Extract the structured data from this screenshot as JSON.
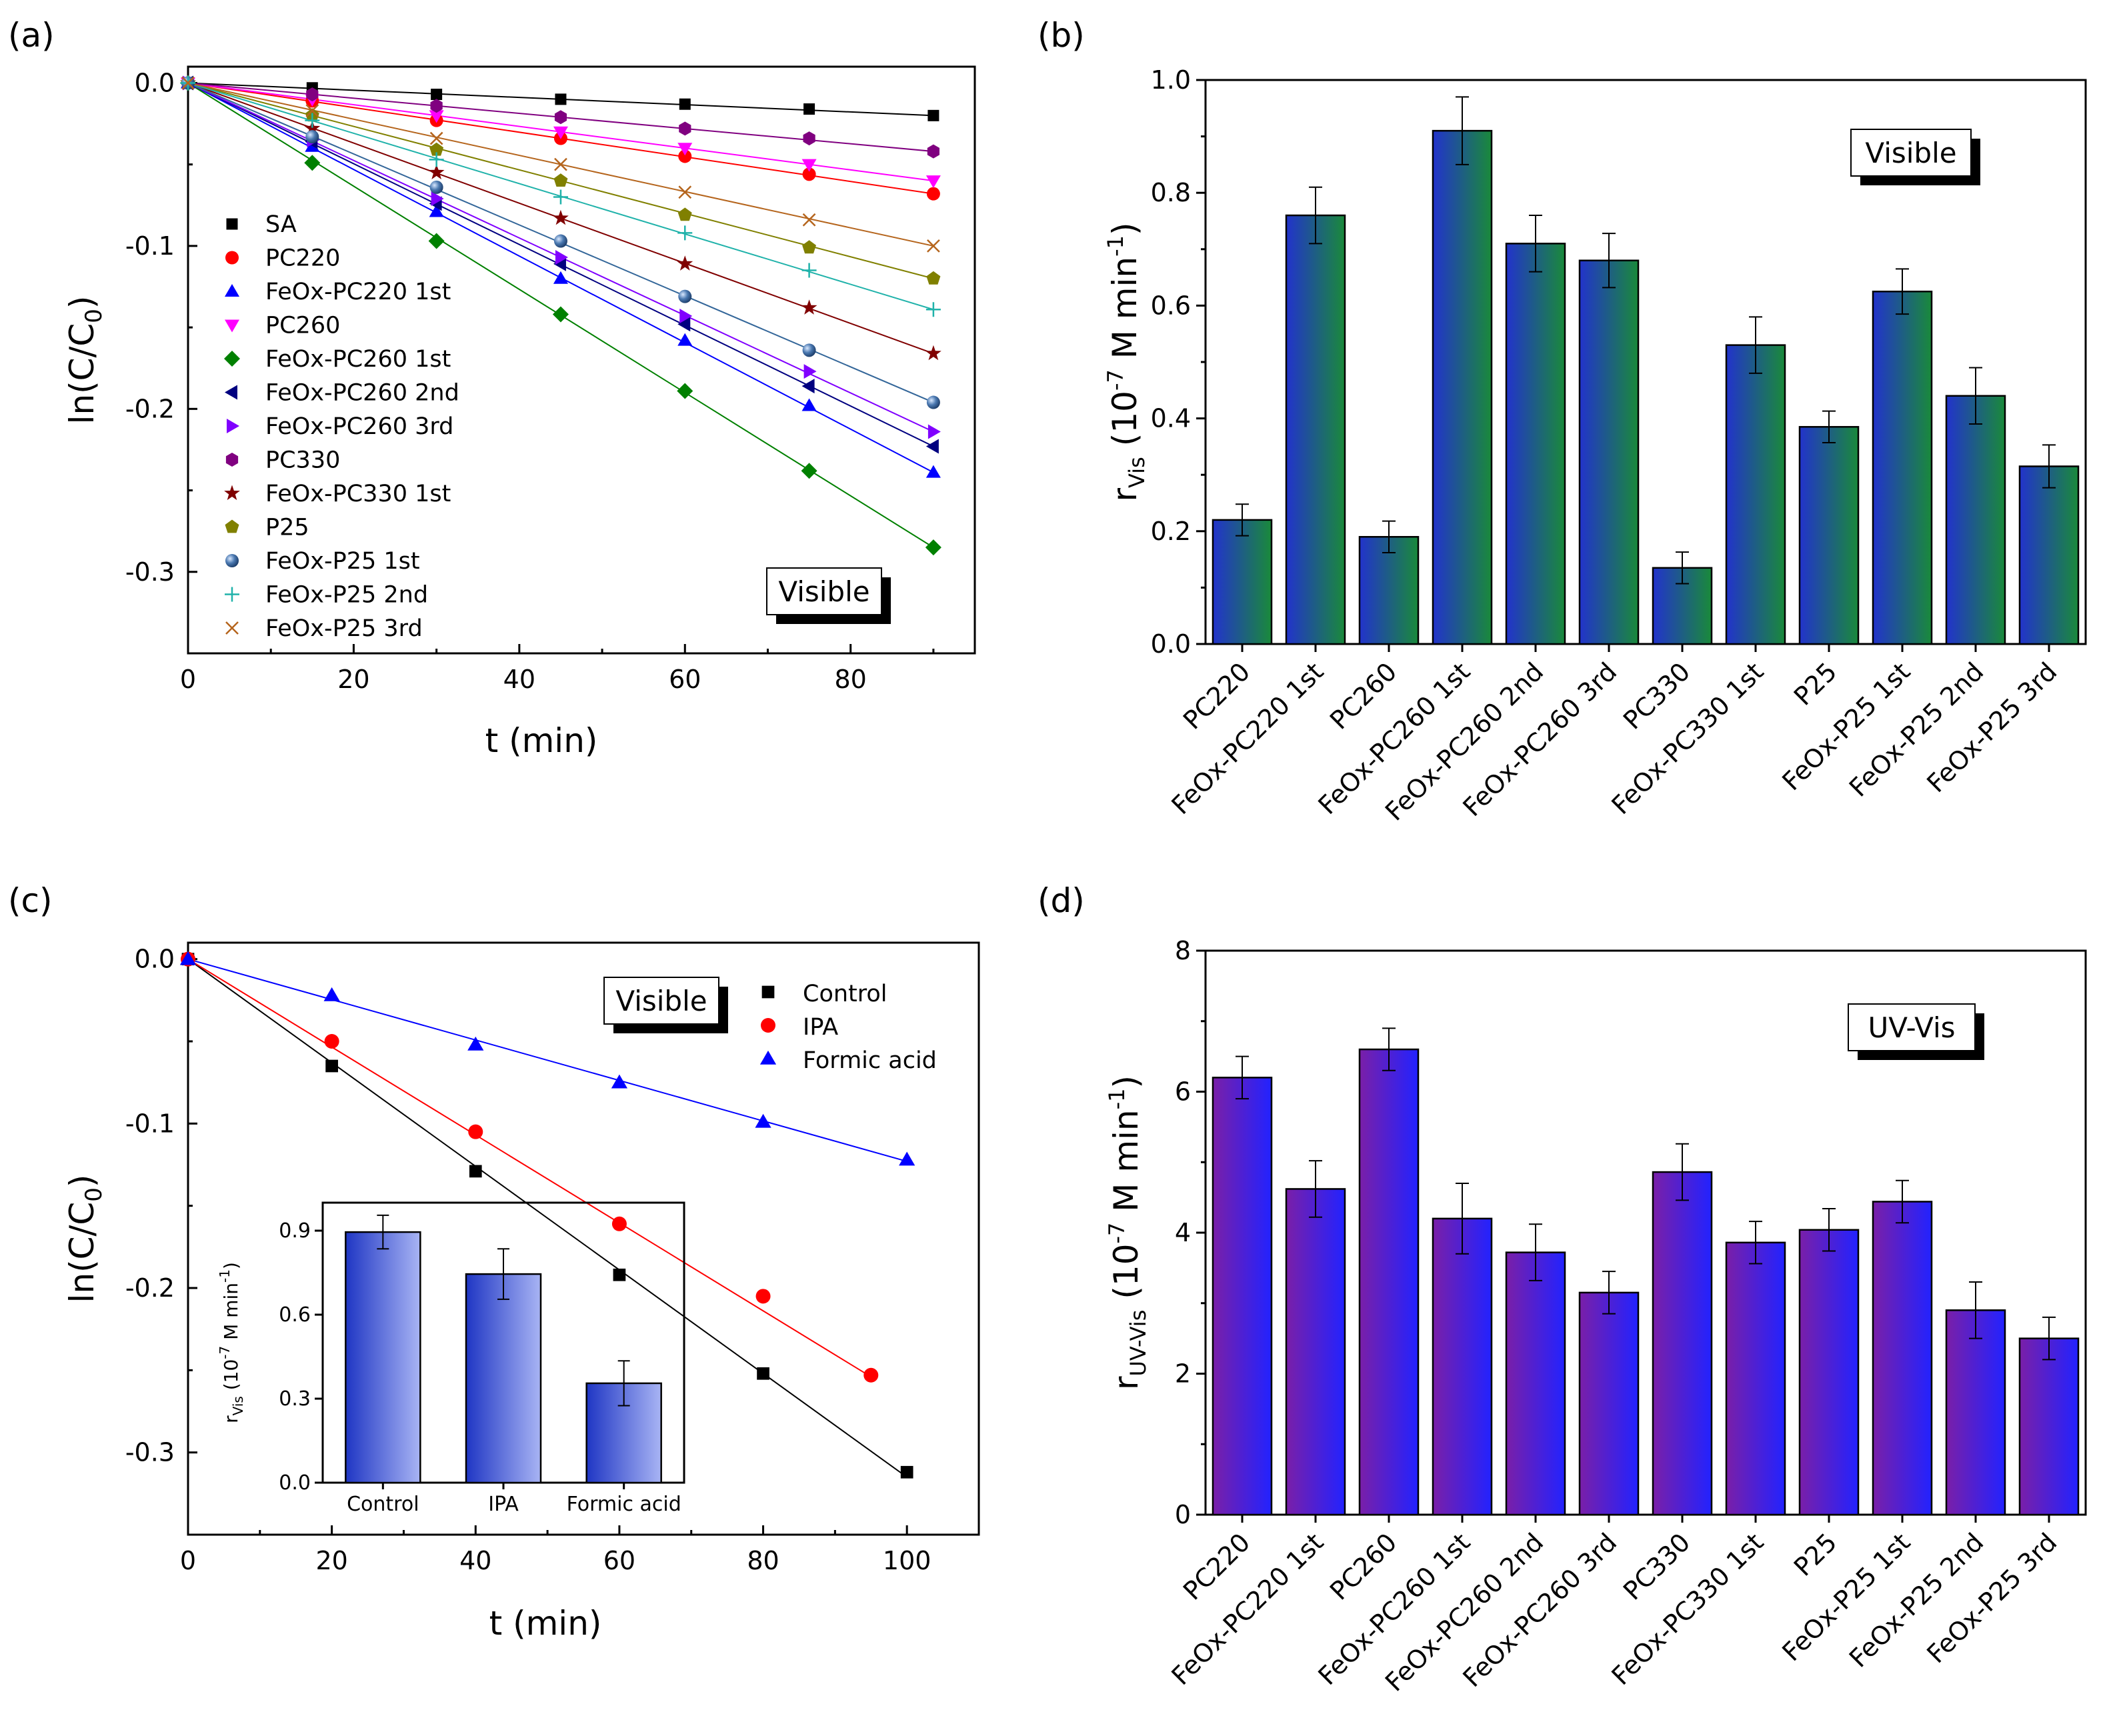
{
  "chart_data": [
    {
      "panel": "(a)",
      "type": "line",
      "xlabel": "t (min)",
      "ylabel": "ln(C/C",
      "ylabel_sub": "0",
      "ylabel_end": ")",
      "xlim": [
        0,
        95
      ],
      "ylim": [
        -0.35,
        0.01
      ],
      "xticks": [
        "0",
        "20",
        "40",
        "60",
        "80"
      ],
      "yticks": [
        "0.0",
        "-0.1",
        "-0.2",
        "-0.3"
      ],
      "annotation": "Visible",
      "x": [
        0,
        15,
        30,
        45,
        60,
        75,
        90
      ],
      "series": [
        {
          "name": "SA",
          "color": "#000000",
          "marker": "square",
          "values": [
            0,
            -0.003,
            -0.007,
            -0.01,
            -0.013,
            -0.016,
            -0.02
          ]
        },
        {
          "name": "PC220",
          "color": "#ff0000",
          "marker": "circle",
          "values": [
            0,
            -0.011,
            -0.023,
            -0.034,
            -0.045,
            -0.056,
            -0.068
          ]
        },
        {
          "name": "FeOx-PC220 1st",
          "color": "#0000ff",
          "marker": "triangle-up",
          "values": [
            0,
            -0.039,
            -0.079,
            -0.12,
            -0.158,
            -0.198,
            -0.239
          ]
        },
        {
          "name": "PC260",
          "color": "#ff00ff",
          "marker": "triangle-down",
          "values": [
            0,
            -0.01,
            -0.02,
            -0.03,
            -0.04,
            -0.05,
            -0.06
          ]
        },
        {
          "name": "FeOx-PC260 1st",
          "color": "#008000",
          "marker": "diamond",
          "values": [
            0,
            -0.049,
            -0.097,
            -0.142,
            -0.189,
            -0.238,
            -0.285
          ]
        },
        {
          "name": "FeOx-PC260 2nd",
          "color": "#000080",
          "marker": "triangle-left",
          "values": [
            0,
            -0.036,
            -0.074,
            -0.111,
            -0.148,
            -0.186,
            -0.223
          ]
        },
        {
          "name": "FeOx-PC260 3rd",
          "color": "#8000ff",
          "marker": "triangle-right",
          "values": [
            0,
            -0.035,
            -0.071,
            -0.107,
            -0.143,
            -0.177,
            -0.214
          ]
        },
        {
          "name": "PC330",
          "color": "#800080",
          "marker": "hexagon",
          "values": [
            0,
            -0.007,
            -0.014,
            -0.021,
            -0.028,
            -0.034,
            -0.042
          ]
        },
        {
          "name": "FeOx-PC330 1st",
          "color": "#800000",
          "marker": "star",
          "values": [
            0,
            -0.028,
            -0.055,
            -0.083,
            -0.111,
            -0.138,
            -0.166
          ]
        },
        {
          "name": "P25",
          "color": "#808000",
          "marker": "pentagon",
          "values": [
            0,
            -0.02,
            -0.041,
            -0.06,
            -0.081,
            -0.101,
            -0.12
          ]
        },
        {
          "name": "FeOx-P25 1st",
          "color": "#336699",
          "marker": "sphere",
          "values": [
            0,
            -0.033,
            -0.064,
            -0.097,
            -0.131,
            -0.164,
            -0.196
          ]
        },
        {
          "name": "FeOx-P25 2nd",
          "color": "#20b2aa",
          "marker": "plus",
          "values": [
            0,
            -0.023,
            -0.047,
            -0.07,
            -0.092,
            -0.115,
            -0.139
          ]
        },
        {
          "name": "FeOx-P25 3rd",
          "color": "#b5651d",
          "marker": "cross",
          "values": [
            0,
            -0.017,
            -0.034,
            -0.05,
            -0.067,
            -0.084,
            -0.1
          ]
        }
      ]
    },
    {
      "panel": "(b)",
      "type": "bar",
      "ylabel": "r",
      "ylabel_sub": "Vis",
      "ylabel_unit": "(10",
      "ylabel_exp": "-7",
      "ylabel_mid": " M min",
      "ylabel_exp2": "-1",
      "ylabel_end": ")",
      "ylim": [
        0,
        1.0
      ],
      "yticks": [
        "0.0",
        "0.2",
        "0.4",
        "0.6",
        "0.8",
        "1.0"
      ],
      "annotation": "Visible",
      "categories": [
        "PC220",
        "FeOx-PC220 1st",
        "PC260",
        "FeOx-PC260 1st",
        "FeOx-PC260 2nd",
        "FeOx-PC260 3rd",
        "PC330",
        "FeOx-PC330 1st",
        "P25",
        "FeOx-P25 1st",
        "FeOx-P25 2nd",
        "FeOx-P25 3rd"
      ],
      "values": [
        0.22,
        0.76,
        0.19,
        0.91,
        0.71,
        0.68,
        0.135,
        0.53,
        0.385,
        0.625,
        0.44,
        0.315
      ],
      "errors": [
        0.028,
        0.05,
        0.028,
        0.06,
        0.05,
        0.048,
        0.028,
        0.05,
        0.028,
        0.04,
        0.05,
        0.038
      ],
      "colors": {
        "left": "#2233cc",
        "right": "#1a8a3a"
      }
    },
    {
      "panel": "(c)",
      "type": "line",
      "xlabel": "t (min)",
      "ylabel": "ln(C/C",
      "ylabel_sub": "0",
      "ylabel_end": ")",
      "xlim": [
        0,
        110
      ],
      "ylim": [
        -0.35,
        0.01
      ],
      "xticks": [
        "0",
        "20",
        "40",
        "60",
        "80",
        "100"
      ],
      "yticks": [
        "0.0",
        "-0.1",
        "-0.2",
        "-0.3"
      ],
      "annotation": "Visible",
      "series": [
        {
          "name": "Control",
          "color": "#000000",
          "marker": "square",
          "x": [
            0,
            20,
            40,
            60,
            80,
            100
          ],
          "values": [
            0,
            -0.065,
            -0.129,
            -0.192,
            -0.252,
            -0.312
          ],
          "fit_end": -0.315
        },
        {
          "name": "IPA",
          "color": "#ff0000",
          "marker": "circle",
          "x": [
            0,
            20,
            40,
            60,
            80,
            95
          ],
          "values": [
            0,
            -0.05,
            -0.105,
            -0.161,
            -0.205,
            -0.253
          ],
          "fit_end": -0.254
        },
        {
          "name": "Formic acid",
          "color": "#0000ff",
          "marker": "triangle-up",
          "x": [
            0,
            20,
            40,
            60,
            80,
            100
          ],
          "values": [
            0,
            -0.022,
            -0.052,
            -0.075,
            -0.099,
            -0.122
          ],
          "fit_end": -0.123
        }
      ],
      "inset": {
        "type": "bar",
        "ylabel": "r",
        "ylabel_sub": "Vis",
        "ylabel_unit": " (10",
        "ylabel_exp": "-7",
        "ylabel_mid": " M min",
        "ylabel_exp2": "-1",
        "ylabel_end": ")",
        "ylim": [
          0,
          1.0
        ],
        "yticks": [
          "0.0",
          "0.3",
          "0.6",
          "0.9"
        ],
        "categories": [
          "Control",
          "IPA",
          "Formic acid"
        ],
        "values": [
          0.895,
          0.745,
          0.355
        ],
        "errors": [
          0.06,
          0.09,
          0.08
        ],
        "colors": {
          "left": "#1f36c4",
          "right": "#a8b4f4"
        }
      }
    },
    {
      "panel": "(d)",
      "type": "bar",
      "ylabel": "r",
      "ylabel_sub": "UV-Vis",
      "ylabel_unit": "(10",
      "ylabel_exp": "-7",
      "ylabel_mid": " M min",
      "ylabel_exp2": "-1",
      "ylabel_end": ")",
      "ylim": [
        0,
        8
      ],
      "yticks": [
        "0",
        "2",
        "4",
        "6",
        "8"
      ],
      "annotation": "UV-Vis",
      "categories": [
        "PC220",
        "FeOx-PC220 1st",
        "PC260",
        "FeOx-PC260 1st",
        "FeOx-PC260 2nd",
        "FeOx-PC260 3rd",
        "PC330",
        "FeOx-PC330 1st",
        "P25",
        "FeOx-P25 1st",
        "FeOx-P25 2nd",
        "FeOx-P25 3rd"
      ],
      "values": [
        6.2,
        4.62,
        6.6,
        4.2,
        3.72,
        3.15,
        4.86,
        3.86,
        4.04,
        4.44,
        2.9,
        2.5
      ],
      "errors": [
        0.3,
        0.4,
        0.3,
        0.5,
        0.4,
        0.3,
        0.4,
        0.3,
        0.3,
        0.3,
        0.4,
        0.3
      ],
      "colors": {
        "left": "#7a1fa8",
        "right": "#2222ff"
      }
    }
  ]
}
